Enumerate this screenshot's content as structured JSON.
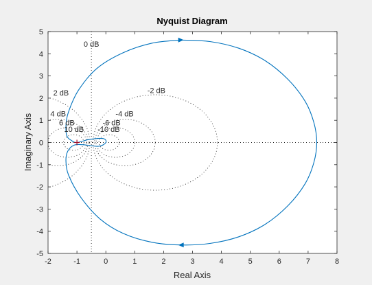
{
  "chart_data": {
    "type": "line",
    "title": "Nyquist Diagram",
    "xlabel": "Real Axis",
    "ylabel": "Imaginary Axis",
    "xlim": [
      -2,
      8
    ],
    "ylim": [
      -5,
      5
    ],
    "xticks": [
      "-2",
      "-1",
      "0",
      "1",
      "2",
      "3",
      "4",
      "5",
      "6",
      "7",
      "8"
    ],
    "yticks": [
      "5",
      "4",
      "3",
      "2",
      "1",
      "0",
      "-1",
      "-2",
      "-3",
      "-4",
      "-5"
    ],
    "grid": "M-circles",
    "critical_point": [
      -1,
      0
    ],
    "series": [
      {
        "color": "#0072bd",
        "points": [
          [
            2.6,
            4.62
          ],
          [
            1.6,
            4.48
          ],
          [
            0.6,
            4.05
          ],
          [
            -0.3,
            3.35
          ],
          [
            -0.95,
            2.35
          ],
          [
            -1.3,
            1.35
          ],
          [
            -1.38,
            0.75
          ],
          [
            -1.35,
            0.3
          ],
          [
            -1.2,
            0.1
          ],
          [
            -1.0,
            0.0
          ],
          [
            -0.6,
            0.13
          ],
          [
            -0.1,
            0.18
          ],
          [
            0.0,
            0.0
          ],
          [
            -0.25,
            -0.17
          ],
          [
            -0.8,
            -0.1
          ],
          [
            -1.1,
            -0.12
          ],
          [
            -1.32,
            -0.4
          ],
          [
            -1.38,
            -0.85
          ],
          [
            -1.28,
            -1.5
          ],
          [
            -0.85,
            -2.5
          ],
          [
            -0.2,
            -3.45
          ],
          [
            0.6,
            -4.1
          ],
          [
            1.6,
            -4.5
          ],
          [
            2.6,
            -4.62
          ],
          [
            3.6,
            -4.55
          ],
          [
            4.6,
            -4.25
          ],
          [
            5.5,
            -3.7
          ],
          [
            6.3,
            -2.85
          ],
          [
            6.9,
            -1.85
          ],
          [
            7.2,
            -0.9
          ],
          [
            7.3,
            0.0
          ],
          [
            7.2,
            0.9
          ],
          [
            6.9,
            1.85
          ],
          [
            6.3,
            2.85
          ],
          [
            5.5,
            3.7
          ],
          [
            4.6,
            4.25
          ],
          [
            3.6,
            4.55
          ],
          [
            2.6,
            4.62
          ]
        ],
        "arrows": [
          [
            2.6,
            4.62,
            1
          ],
          [
            2.6,
            -4.62,
            -1
          ]
        ]
      }
    ],
    "m_circles": [
      {
        "label": "0 dB",
        "db": 0
      },
      {
        "label": "2 dB",
        "db": 2
      },
      {
        "label": "4 dB",
        "db": 4
      },
      {
        "label": "6 dB",
        "db": 6
      },
      {
        "label": "10 dB",
        "db": 10
      },
      {
        "label": "-2 dB",
        "db": -2
      },
      {
        "label": "-4 dB",
        "db": -4
      },
      {
        "label": "-6 dB",
        "db": -6
      },
      {
        "label": "-10 dB",
        "db": -10
      }
    ],
    "colors": {
      "figure_bg": "#f0f0f0",
      "axes_bg": "#ffffff",
      "axes_edge": "#262626",
      "grid": "#262626",
      "curve": "#0072bd",
      "critical_marker": "#a2142f"
    }
  }
}
